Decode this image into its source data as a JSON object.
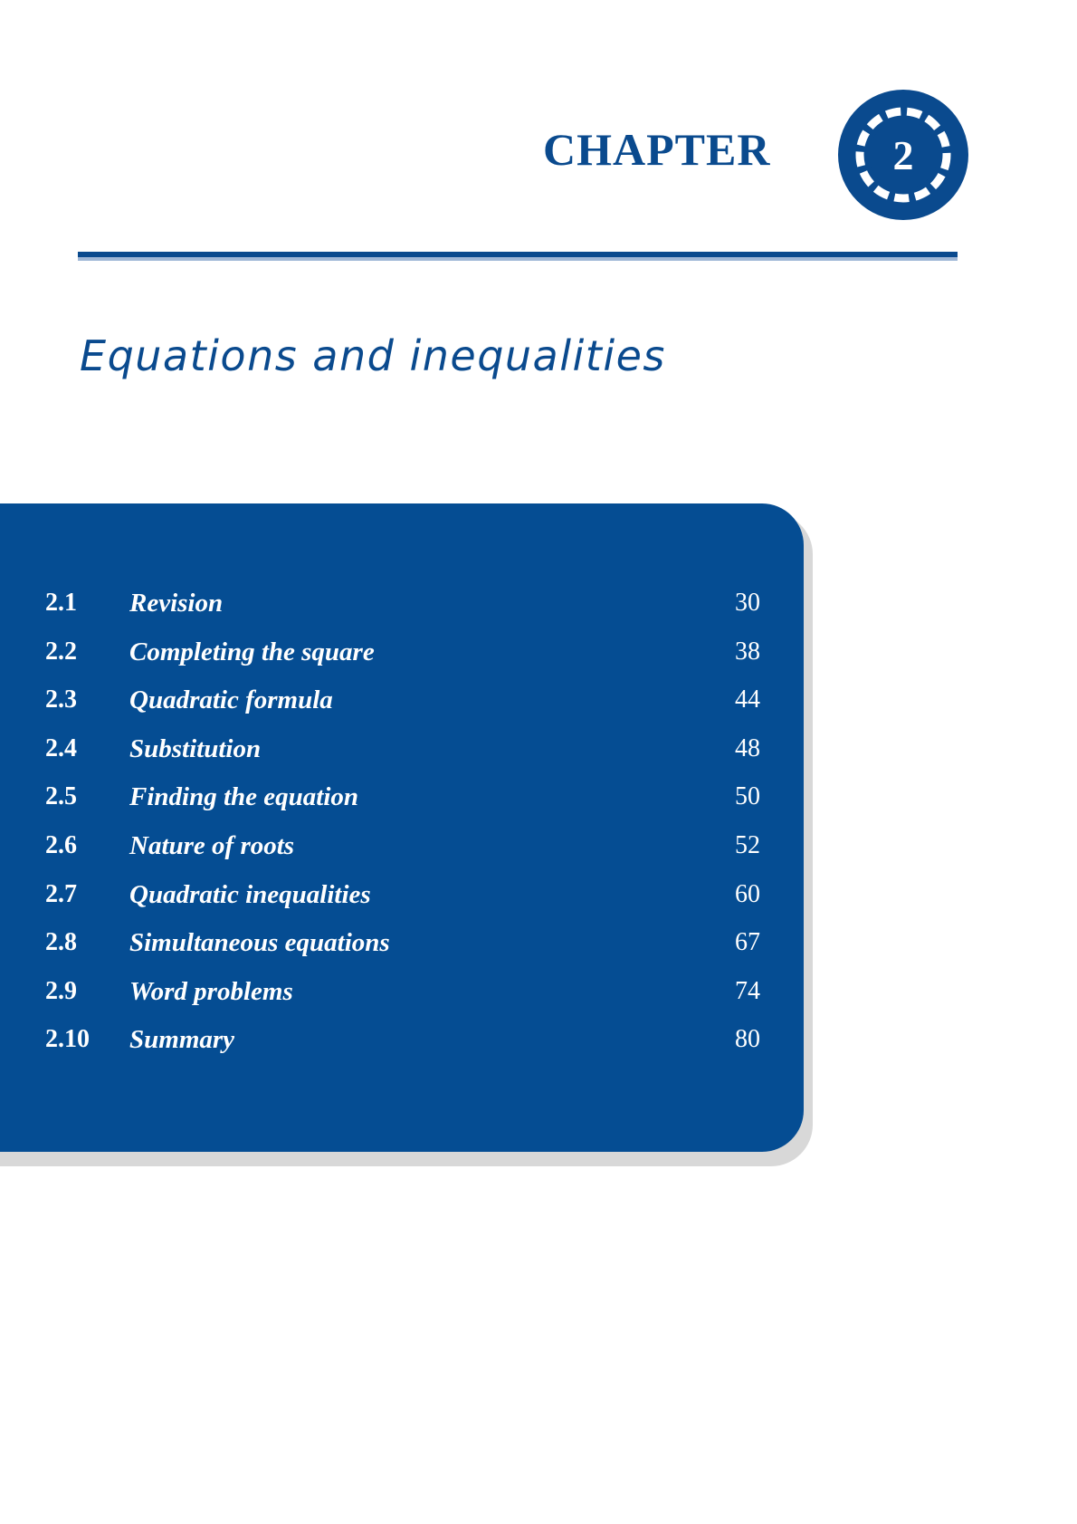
{
  "header": {
    "chapter_label": "CHAPTER",
    "chapter_number": "2"
  },
  "title": "Equations and inequalities",
  "toc": [
    {
      "number": "2.1",
      "title": "Revision",
      "page": "30"
    },
    {
      "number": "2.2",
      "title": "Completing the square",
      "page": "38"
    },
    {
      "number": "2.3",
      "title": "Quadratic formula",
      "page": "44"
    },
    {
      "number": "2.4",
      "title": "Substitution",
      "page": "48"
    },
    {
      "number": "2.5",
      "title": "Finding the equation",
      "page": "50"
    },
    {
      "number": "2.6",
      "title": "Nature of roots",
      "page": "52"
    },
    {
      "number": "2.7",
      "title": "Quadratic inequalities",
      "page": "60"
    },
    {
      "number": "2.8",
      "title": "Simultaneous equations",
      "page": "67"
    },
    {
      "number": "2.9",
      "title": "Word problems",
      "page": "74"
    },
    {
      "number": "2.10",
      "title": "Summary",
      "page": "80"
    }
  ],
  "colors": {
    "brand_blue": "#0a4a8e",
    "panel_blue": "#054d93",
    "rule_light": "#9fb7d6",
    "shadow": "#d8d8d8",
    "text_on_panel": "#ffffff"
  }
}
